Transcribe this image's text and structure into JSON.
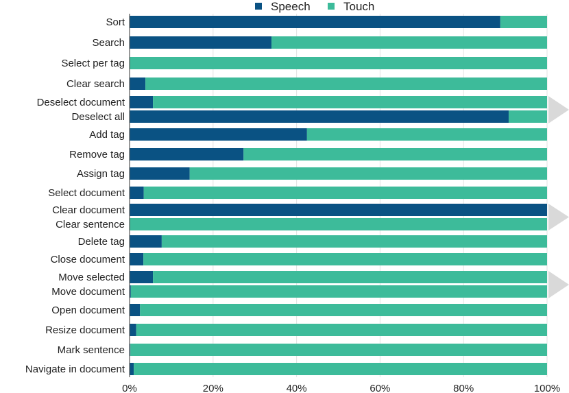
{
  "chart_data": {
    "type": "bar",
    "orientation": "horizontal",
    "stacked": true,
    "percent": true,
    "categories": [
      "Sort",
      "Search",
      "Select per tag",
      "Clear search",
      "Deselect document",
      "Deselect all",
      "Add tag",
      "Remove tag",
      "Assign tag",
      "Select document",
      "Clear document",
      "Clear sentence",
      "Delete tag",
      "Close document",
      "Move selected",
      "Move document",
      "Open document",
      "Resize document",
      "Mark sentence",
      "Navigate in document"
    ],
    "series": [
      {
        "name": "Speech",
        "color": "#0a5283",
        "values": [
          88.8,
          34.0,
          0,
          3.8,
          5.6,
          90.8,
          42.5,
          27.3,
          14.4,
          3.4,
          100,
          0,
          7.7,
          3.3,
          5.6,
          0.3,
          2.5,
          1.6,
          0.2,
          1.0
        ]
      },
      {
        "name": "Touch",
        "color": "#3dbb9a",
        "values": [
          11.2,
          66.0,
          100,
          96.2,
          94.4,
          9.2,
          57.5,
          72.7,
          85.6,
          96.6,
          0,
          100,
          92.3,
          96.7,
          94.4,
          99.7,
          97.5,
          98.4,
          99.8,
          99.0
        ]
      }
    ],
    "xlim": [
      0,
      100
    ],
    "xticks": [
      "0%",
      "20%",
      "40%",
      "60%",
      "80%",
      "100%"
    ],
    "grid": true,
    "legend_position": "top",
    "pair_marker_color": "#d9d9d9"
  }
}
